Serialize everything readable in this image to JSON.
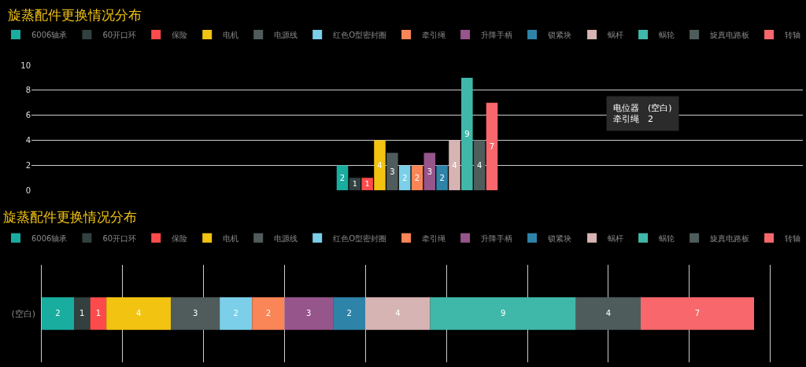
{
  "chart_data": [
    {
      "type": "bar",
      "title": "旋蒸配件更换情况分布",
      "categories": [
        null
      ],
      "legend": "top left",
      "grid": "y",
      "data_labels": true,
      "ylim": [
        0,
        10
      ],
      "yticks": [
        0,
        2,
        4,
        6,
        8,
        10
      ],
      "tick_labels": "y",
      "annotations": [
        "电位器　(空白)\n牵引绳　2"
      ],
      "series": [
        {
          "name": "6006轴承",
          "color": "#19ad9f",
          "values": [
            2
          ]
        },
        {
          "name": "60开口环",
          "color": "#32403f",
          "values": [
            1
          ]
        },
        {
          "name": "保险",
          "color": "#fd4b4b",
          "values": [
            1
          ]
        },
        {
          "name": "电机",
          "color": "#f2c311",
          "values": [
            4
          ]
        },
        {
          "name": "电源线",
          "color": "#505b5b",
          "values": [
            3
          ]
        },
        {
          "name": "红色O型密封圈",
          "color": "#7bcfe9",
          "values": [
            2
          ]
        },
        {
          "name": "牵引绳",
          "color": "#fa8556",
          "values": [
            2
          ]
        },
        {
          "name": "升降手柄",
          "color": "#96558b",
          "values": [
            3
          ]
        },
        {
          "name": "锁紧块",
          "color": "#2e84a8",
          "values": [
            2
          ]
        },
        {
          "name": "蜗杆",
          "color": "#d6b4b3",
          "values": [
            4
          ]
        },
        {
          "name": "蜗轮",
          "color": "#40b8a9",
          "values": [
            9
          ]
        },
        {
          "name": "旋真电路板",
          "color": "#4e5c5c",
          "values": [
            4
          ]
        },
        {
          "name": "转轴",
          "color": "#f7676b",
          "values": [
            7
          ]
        }
      ]
    },
    {
      "type": "bar",
      "title": "旋蒸配件更换情况分布",
      "categories": [
        "(空白)"
      ],
      "orientation": "horizontal",
      "stacked": true,
      "legend": "top left",
      "grid": "x",
      "data_labels": true,
      "tick_labels": "y",
      "series": [
        {
          "name": "6006轴承",
          "color": "#19ad9f",
          "values": [
            2
          ]
        },
        {
          "name": "60开口环",
          "color": "#32403f",
          "values": [
            1
          ]
        },
        {
          "name": "保险",
          "color": "#fd4b4b",
          "values": [
            1
          ]
        },
        {
          "name": "电机",
          "color": "#f2c311",
          "values": [
            4
          ]
        },
        {
          "name": "电源线",
          "color": "#505b5b",
          "values": [
            3
          ]
        },
        {
          "name": "红色O型密封圈",
          "color": "#7bcfe9",
          "values": [
            2
          ]
        },
        {
          "name": "牵引绳",
          "color": "#fa8556",
          "values": [
            2
          ]
        },
        {
          "name": "升降手柄",
          "color": "#96558b",
          "values": [
            3
          ]
        },
        {
          "name": "锁紧块",
          "color": "#2e84a8",
          "values": [
            2
          ]
        },
        {
          "name": "蜗杆",
          "color": "#d6b4b3",
          "values": [
            4
          ]
        },
        {
          "name": "蜗轮",
          "color": "#40b8a9",
          "values": [
            9
          ]
        },
        {
          "name": "旋真电路板",
          "color": "#4e5c5c",
          "values": [
            4
          ]
        },
        {
          "name": "转轴",
          "color": "#f7676b",
          "values": [
            7
          ]
        }
      ]
    }
  ]
}
